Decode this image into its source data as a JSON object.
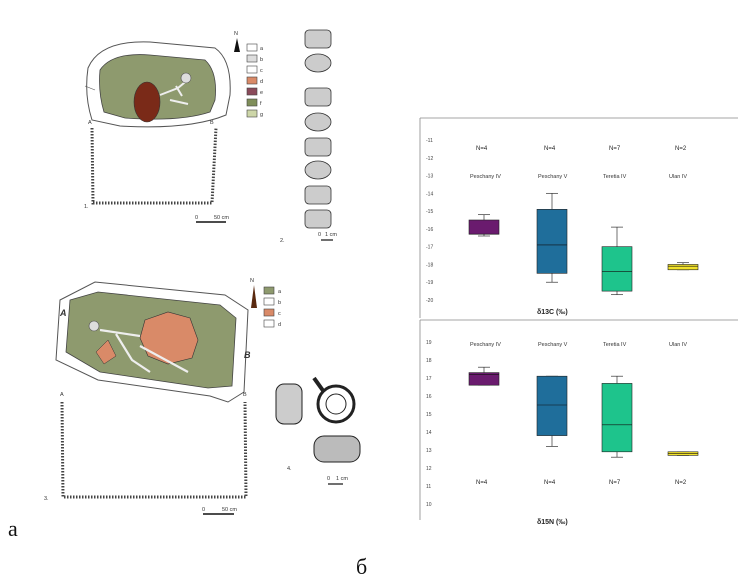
{
  "panel_labels": {
    "a": "a",
    "b": "б"
  },
  "figure1": {
    "number": "1.",
    "section_left": "A",
    "section_right": "B",
    "north": "N",
    "scale": {
      "zero": "0",
      "end": "50 cm"
    },
    "legend": [
      "a",
      "b",
      "c",
      "d",
      "e",
      "f",
      "g"
    ]
  },
  "figure2": {
    "number": "2.",
    "scale": {
      "zero": "0",
      "end": "1 cm"
    }
  },
  "figure3": {
    "number": "3.",
    "section_left": "A",
    "section_right": "B",
    "north": "N",
    "scale": {
      "zero": "0",
      "end": "50 cm"
    },
    "legend": [
      "a",
      "b",
      "c",
      "d"
    ]
  },
  "figure4": {
    "number": "4.",
    "scale": {
      "zero": "0",
      "end": "1 cm"
    }
  },
  "colors": {
    "purple": "#6a1b6e",
    "blue": "#1f6e9b",
    "green": "#1ec48c",
    "yellow": "#f2e22a",
    "grave_fill": "#8e9a6e",
    "ochre": "#d98a68"
  },
  "chart_data": [
    {
      "type": "box",
      "xlabel": "δ13C (‰)",
      "ylim": [
        -20,
        -11
      ],
      "y_ticks": [
        "-11",
        "-12",
        "-13",
        "-14",
        "-15",
        "-16",
        "-17",
        "-18",
        "-19",
        "-20"
      ],
      "categories": [
        "Peschany IV",
        "Peschany V",
        "Teretia IV",
        "Ulan IV"
      ],
      "counts": [
        "N=4",
        "N=4",
        "N=7",
        "N=2"
      ],
      "series": [
        {
          "name": "Peschany IV",
          "min": -16.4,
          "q1": -16.3,
          "median": -16.3,
          "q3": -15.5,
          "max": -15.2
        },
        {
          "name": "Peschany V",
          "min": -19.0,
          "q1": -18.5,
          "median": -16.9,
          "q3": -14.9,
          "max": -14.0
        },
        {
          "name": "Teretia IV",
          "min": -19.7,
          "q1": -19.5,
          "median": -18.4,
          "q3": -17.0,
          "max": -15.9
        },
        {
          "name": "Ulan IV",
          "min": -18.3,
          "q1": -18.3,
          "median": -18.1,
          "q3": -18.0,
          "max": -17.9
        }
      ]
    },
    {
      "type": "box",
      "xlabel": "δ15N (‰)",
      "ylim": [
        10,
        19
      ],
      "y_ticks": [
        "19",
        "18",
        "17",
        "16",
        "15",
        "14",
        "13",
        "12",
        "11",
        "10"
      ],
      "categories": [
        "Peschany IV",
        "Peschany V",
        "Teretia IV",
        "Ulan IV"
      ],
      "counts": [
        "N=4",
        "N=4",
        "N=7",
        "N=2"
      ],
      "series": [
        {
          "name": "Peschany IV",
          "min": 16.6,
          "q1": 16.6,
          "median": 17.2,
          "q3": 17.3,
          "max": 17.6
        },
        {
          "name": "Peschany V",
          "min": 13.2,
          "q1": 13.8,
          "median": 15.5,
          "q3": 17.1,
          "max": 17.1
        },
        {
          "name": "Teretia IV",
          "min": 12.6,
          "q1": 12.9,
          "median": 14.4,
          "q3": 16.7,
          "max": 17.1
        },
        {
          "name": "Ulan IV",
          "min": 12.7,
          "q1": 12.7,
          "median": 12.8,
          "q3": 12.9,
          "max": 12.9
        }
      ]
    }
  ]
}
